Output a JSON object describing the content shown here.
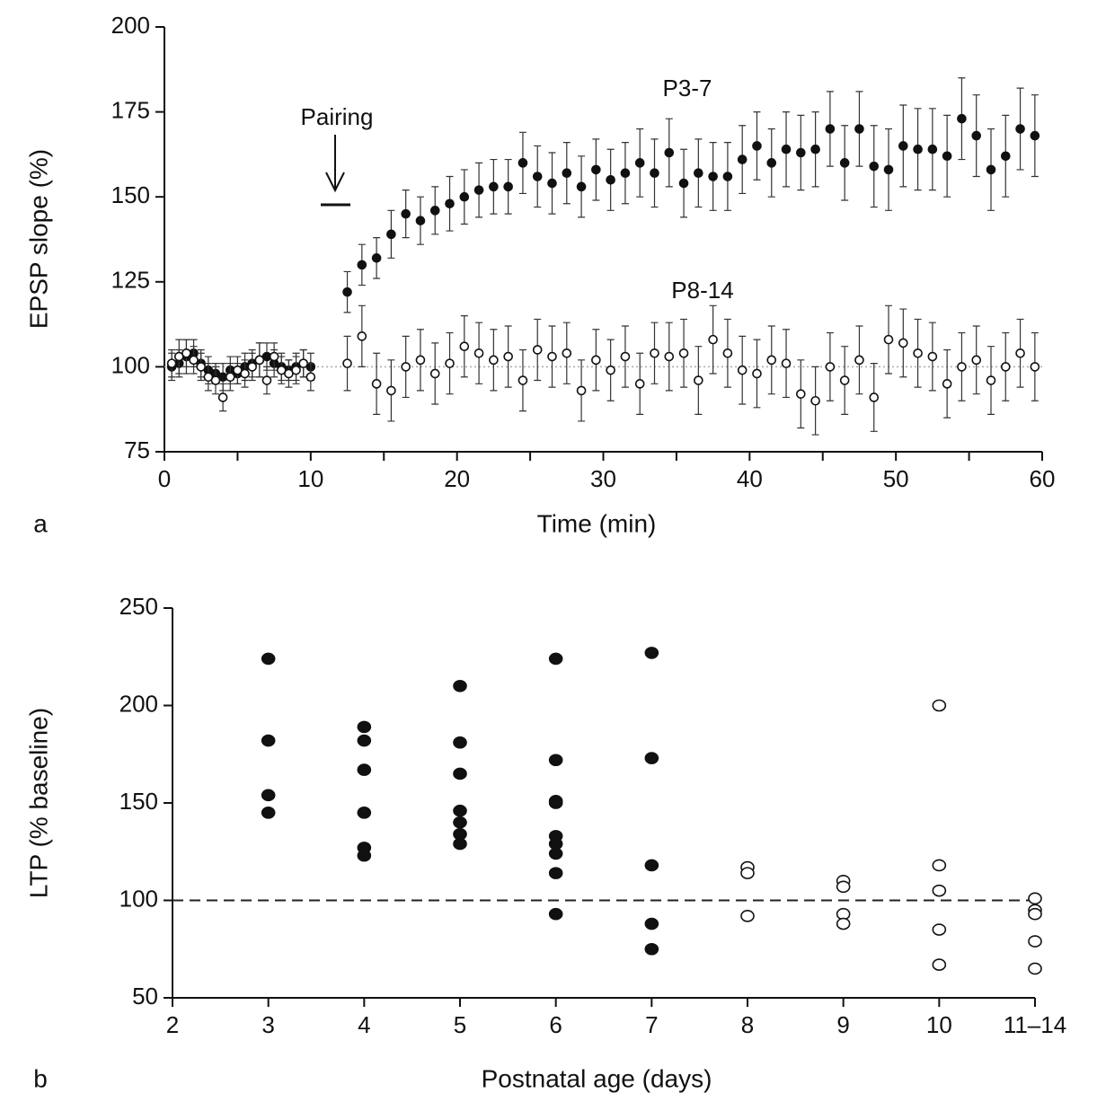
{
  "chart_data": [
    {
      "type": "scatter",
      "panel_label": "a",
      "xlabel": "Time (min)",
      "ylabel": "EPSP slope (%)",
      "annotation": "Pairing",
      "xlim": [
        0,
        60
      ],
      "xticks": [
        0,
        10,
        20,
        30,
        40,
        50,
        60
      ],
      "xminor": [
        5,
        15,
        25,
        35,
        45,
        55
      ],
      "ylim": [
        75,
        200
      ],
      "yticks": [
        75,
        100,
        125,
        150,
        175,
        200
      ],
      "hline": {
        "value": 100,
        "style": "dotted"
      },
      "x": [
        0.5,
        1,
        1.5,
        2,
        2.5,
        3,
        3.5,
        4,
        4.5,
        5,
        5.5,
        6,
        6.5,
        7,
        7.5,
        8,
        8.5,
        9,
        9.5,
        10,
        12.5,
        13.5,
        14.5,
        15.5,
        16.5,
        17.5,
        18.5,
        19.5,
        20.5,
        21.5,
        22.5,
        23.5,
        24.5,
        25.5,
        26.5,
        27.5,
        28.5,
        29.5,
        30.5,
        31.5,
        32.5,
        33.5,
        34.5,
        35.5,
        36.5,
        37.5,
        38.5,
        39.5,
        40.5,
        41.5,
        42.5,
        43.5,
        44.5,
        45.5,
        46.5,
        47.5,
        48.5,
        49.5,
        50.5,
        51.5,
        52.5,
        53.5,
        54.5,
        55.5,
        56.5,
        57.5,
        58.5,
        59.5
      ],
      "series": [
        {
          "name": "P3-7",
          "color": "#111111",
          "marker": "filled",
          "values": [
            100,
            101,
            103,
            104,
            101,
            99,
            98,
            97,
            99,
            98,
            100,
            101,
            102,
            103,
            101,
            100,
            99,
            100,
            101,
            100,
            122,
            130,
            132,
            139,
            145,
            143,
            146,
            148,
            150,
            152,
            153,
            153,
            160,
            156,
            154,
            157,
            153,
            158,
            155,
            157,
            160,
            157,
            163,
            154,
            157,
            156,
            156,
            161,
            165,
            160,
            164,
            163,
            164,
            170,
            160,
            170,
            159,
            158,
            165,
            164,
            164,
            162,
            173,
            168,
            158,
            162,
            170,
            168
          ],
          "errors": [
            4,
            4,
            5,
            4,
            4,
            4,
            3,
            4,
            4,
            3,
            4,
            4,
            5,
            4,
            4,
            4,
            3,
            4,
            4,
            4,
            6,
            6,
            6,
            7,
            7,
            7,
            7,
            8,
            8,
            8,
            8,
            8,
            9,
            9,
            9,
            9,
            9,
            9,
            9,
            9,
            10,
            10,
            10,
            10,
            10,
            10,
            10,
            10,
            10,
            10,
            11,
            11,
            11,
            11,
            11,
            11,
            12,
            12,
            12,
            12,
            12,
            12,
            12,
            12,
            12,
            12,
            12,
            12
          ]
        },
        {
          "name": "P8-14",
          "color": "#111111",
          "marker": "open",
          "values": [
            101,
            103,
            104,
            102,
            100,
            97,
            96,
            91,
            97,
            99,
            98,
            100,
            102,
            96,
            103,
            99,
            98,
            99,
            101,
            97,
            101,
            109,
            95,
            93,
            100,
            102,
            98,
            101,
            106,
            104,
            102,
            103,
            96,
            105,
            103,
            104,
            93,
            102,
            99,
            103,
            95,
            104,
            103,
            104,
            96,
            108,
            104,
            99,
            98,
            102,
            101,
            92,
            90,
            100,
            96,
            102,
            91,
            108,
            107,
            104,
            103,
            95,
            100,
            102,
            96,
            100,
            104,
            100
          ],
          "errors": [
            4,
            5,
            4,
            4,
            4,
            4,
            4,
            4,
            4,
            4,
            4,
            4,
            5,
            4,
            4,
            4,
            4,
            4,
            4,
            4,
            8,
            9,
            9,
            9,
            9,
            9,
            9,
            9,
            9,
            9,
            9,
            9,
            9,
            9,
            9,
            9,
            9,
            9,
            9,
            9,
            9,
            9,
            10,
            10,
            10,
            10,
            10,
            10,
            10,
            10,
            10,
            10,
            10,
            10,
            10,
            10,
            10,
            10,
            10,
            10,
            10,
            10,
            10,
            10,
            10,
            10,
            10,
            10
          ]
        }
      ]
    },
    {
      "type": "scatter",
      "panel_label": "b",
      "xlabel": "Postnatal age (days)",
      "ylabel": "LTP (% baseline)",
      "xlim": [
        2,
        11
      ],
      "xticks": [
        2,
        3,
        4,
        5,
        6,
        7,
        8,
        9,
        10,
        {
          "value": 11,
          "label": "11–14"
        }
      ],
      "ylim": [
        50,
        250
      ],
      "yticks": [
        50,
        100,
        150,
        200,
        250
      ],
      "hline": {
        "value": 100,
        "style": "dashed"
      },
      "series": [
        {
          "color": "#111111",
          "marker": "filled",
          "x": [
            3,
            3,
            3,
            3,
            4,
            4,
            4,
            4,
            4,
            4,
            5,
            5,
            5,
            5,
            5,
            5,
            5,
            6,
            6,
            6,
            6,
            6,
            6,
            6,
            6,
            6,
            7,
            7,
            7,
            7,
            7
          ],
          "values": [
            224,
            182,
            154,
            145,
            189,
            182,
            167,
            145,
            127,
            123,
            210,
            181,
            165,
            146,
            140,
            134,
            129,
            224,
            172,
            151,
            150,
            133,
            129,
            124,
            114,
            93,
            227,
            173,
            118,
            88,
            75
          ]
        },
        {
          "color": "#111111",
          "marker": "open",
          "x": [
            8,
            8,
            8,
            9,
            9,
            9,
            9,
            10,
            10,
            10,
            10,
            10,
            11,
            11,
            11,
            11,
            11
          ],
          "values": [
            117,
            114,
            92,
            110,
            107,
            93,
            88,
            200,
            118,
            105,
            85,
            67,
            101,
            95,
            93,
            79,
            65
          ]
        }
      ]
    }
  ]
}
